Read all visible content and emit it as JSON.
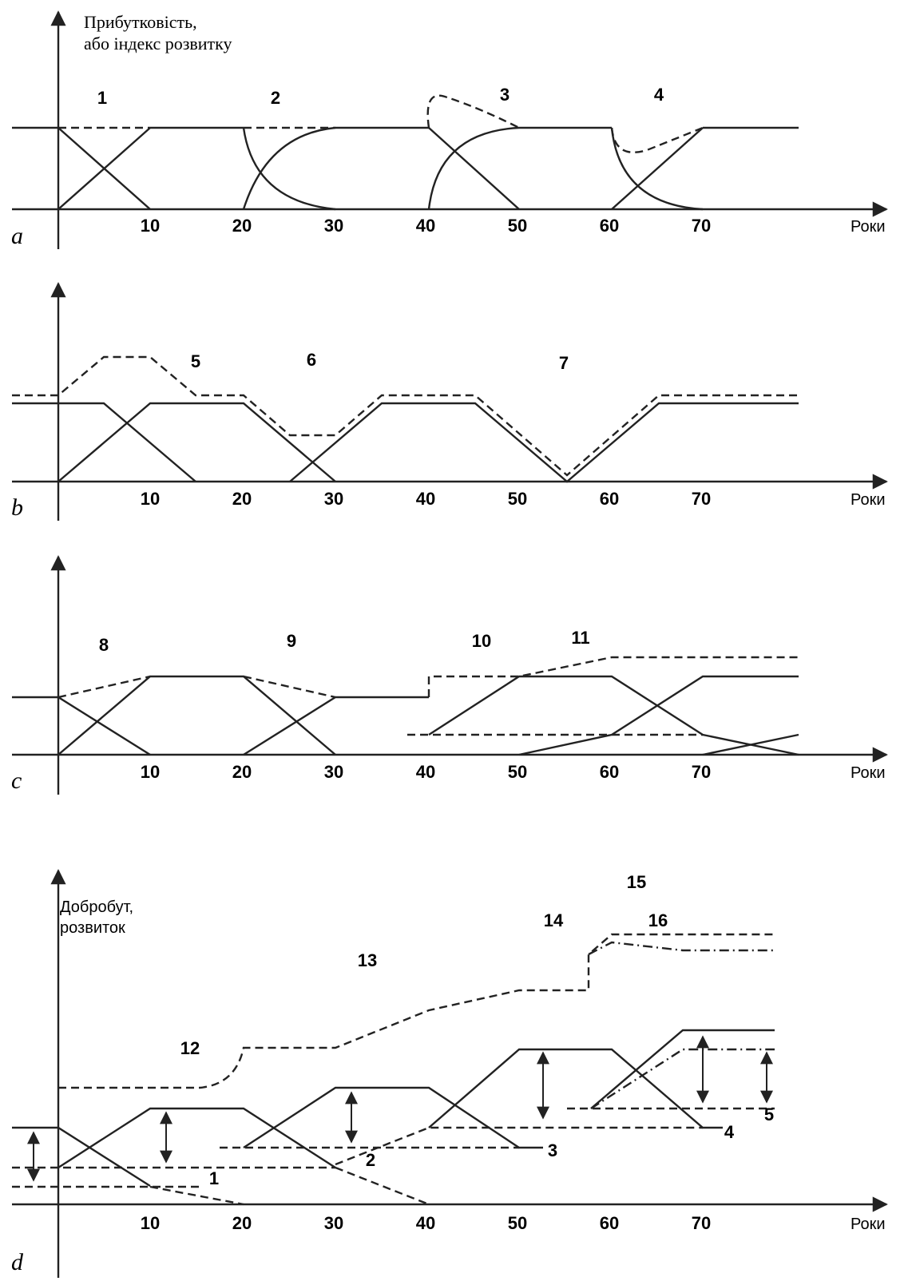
{
  "panels": [
    {
      "letter": "a",
      "y_label": [
        "Прибутковість,",
        "або індекс розвитку"
      ],
      "x_label": "Роки",
      "x_ticks": [
        "10",
        "20",
        "30",
        "40",
        "50",
        "60",
        "70"
      ],
      "curve_labels": [
        "1",
        "2",
        "3",
        "4"
      ]
    },
    {
      "letter": "b",
      "x_label": "Роки",
      "x_ticks": [
        "10",
        "20",
        "30",
        "40",
        "50",
        "60",
        "70"
      ],
      "curve_labels": [
        "5",
        "6",
        "7"
      ]
    },
    {
      "letter": "c",
      "x_label": "Роки",
      "x_ticks": [
        "10",
        "20",
        "30",
        "40",
        "50",
        "60",
        "70"
      ],
      "curve_labels": [
        "8",
        "9",
        "10",
        "11"
      ]
    },
    {
      "letter": "d",
      "y_label": [
        "Добробут,",
        "розвиток"
      ],
      "x_label": "Роки",
      "x_ticks": [
        "10",
        "20",
        "30",
        "40",
        "50",
        "60",
        "70"
      ],
      "curve_labels": [
        "1",
        "2",
        "3",
        "4",
        "5",
        "12",
        "13",
        "14",
        "15",
        "16"
      ]
    }
  ]
}
